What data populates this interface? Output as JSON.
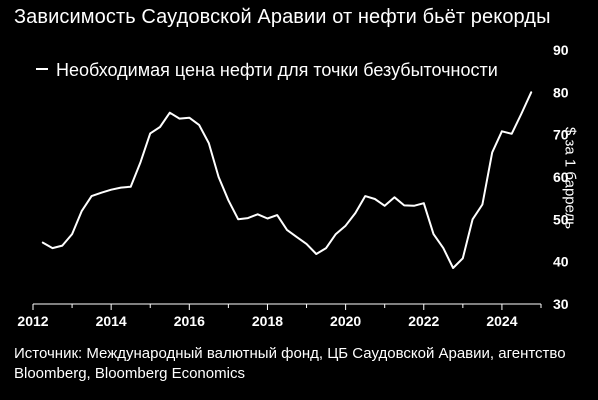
{
  "title": "Зависимость Саудовской Аравии от нефти бьёт рекорды",
  "source": "Источник: Международный валютный фонд, ЦБ Саудовской Аравии, агентство Bloomberg, Bloomberg Economics",
  "colors": {
    "background": "#000000",
    "line": "#ffffff",
    "text": "#ffffff"
  },
  "chart_data": {
    "type": "line",
    "title": "Зависимость Саудовской Аравии от нефти бьёт рекорды",
    "xlabel": "",
    "ylabel": "$ за 1 баррель",
    "xlim": [
      2012,
      2025
    ],
    "ylim": [
      30,
      90
    ],
    "x_ticks": [
      2012,
      2014,
      2016,
      2018,
      2020,
      2022,
      2024
    ],
    "y_ticks": [
      30,
      40,
      50,
      60,
      70,
      80,
      90
    ],
    "y_axis_position": "right",
    "grid": false,
    "legend_position": "top-left",
    "series": [
      {
        "name": "Необходимая цена нефти для точки безубыточности",
        "x": [
          2012.25,
          2012.5,
          2012.75,
          2013.0,
          2013.25,
          2013.5,
          2013.75,
          2014.0,
          2014.25,
          2014.5,
          2014.75,
          2015.0,
          2015.25,
          2015.5,
          2015.75,
          2016.0,
          2016.25,
          2016.5,
          2016.75,
          2017.0,
          2017.25,
          2017.5,
          2017.75,
          2018.0,
          2018.25,
          2018.5,
          2018.75,
          2019.0,
          2019.25,
          2019.5,
          2019.75,
          2020.0,
          2020.25,
          2020.5,
          2020.75,
          2021.0,
          2021.25,
          2021.5,
          2021.75,
          2022.0,
          2022.25,
          2022.5,
          2022.75,
          2023.0,
          2023.25,
          2023.5,
          2023.75,
          2024.0,
          2024.25,
          2024.5,
          2024.75
        ],
        "y": [
          44.5,
          43.2,
          43.8,
          46.5,
          52.0,
          55.5,
          56.3,
          57.0,
          57.5,
          57.7,
          63.5,
          70.3,
          71.8,
          75.2,
          73.8,
          74.0,
          72.3,
          68.0,
          60.0,
          54.5,
          50.0,
          50.3,
          51.2,
          50.2,
          51.0,
          47.5,
          45.8,
          44.2,
          41.8,
          43.2,
          46.5,
          48.5,
          51.5,
          55.5,
          54.8,
          53.2,
          55.2,
          53.3,
          53.2,
          53.8,
          46.5,
          43.2,
          38.5,
          40.8,
          50.0,
          53.5,
          65.8,
          70.8,
          70.2,
          75.0,
          80.0
        ]
      }
    ]
  }
}
